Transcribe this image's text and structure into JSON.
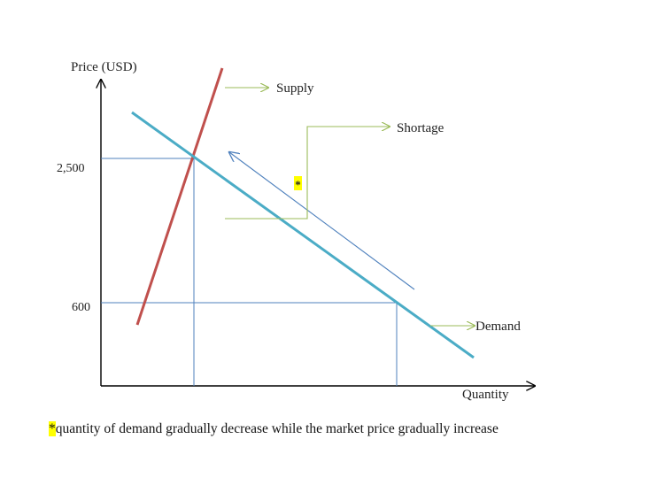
{
  "colors": {
    "axis": "#000000",
    "supply": "#c0504d",
    "demand": "#4bacc6",
    "guide": "#4f81bd",
    "callout": "#9bbb59",
    "highlight": "#ffff00"
  },
  "axes": {
    "y_label": "Price (USD)",
    "x_label": "Quantity",
    "y_ticks": [
      "2,500",
      "600"
    ]
  },
  "curves": {
    "supply_label": "Supply",
    "demand_label": "Demand"
  },
  "annotations": {
    "shortage_label": "Shortage",
    "asterisk": "*"
  },
  "footnote": {
    "marker": "*",
    "text": "quantity of demand gradually decrease while the market price gradually increase"
  }
}
